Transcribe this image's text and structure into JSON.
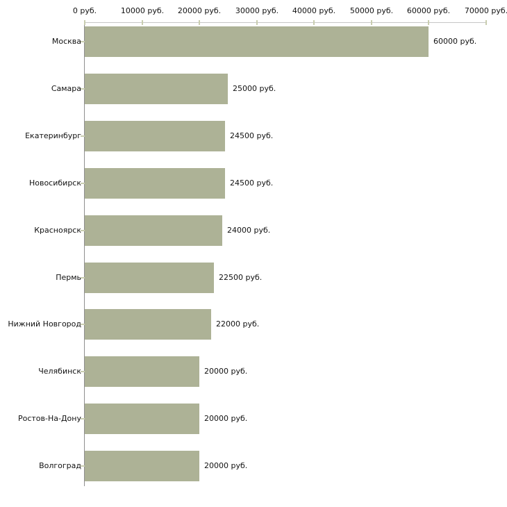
{
  "chart_data": {
    "type": "bar",
    "orientation": "horizontal",
    "title": "",
    "categories": [
      "Москва",
      "Самара",
      "Екатеринбург",
      "Новосибирск",
      "Красноярск",
      "Пермь",
      "Нижний Новгород",
      "Челябинск",
      "Ростов-На-Дону",
      "Волгоград"
    ],
    "values": [
      60000,
      25000,
      24500,
      24500,
      24000,
      22500,
      22000,
      20000,
      20000,
      20000
    ],
    "value_labels": [
      "60000 руб.",
      "25000 руб.",
      "24500 руб.",
      "24500 руб.",
      "24000 руб.",
      "22500 руб.",
      "22000 руб.",
      "20000 руб.",
      "20000 руб.",
      "20000 руб."
    ],
    "x_axis": {
      "position": "top",
      "min": 0,
      "max": 70000,
      "ticks": [
        0,
        10000,
        20000,
        30000,
        40000,
        50000,
        60000,
        70000
      ],
      "tick_labels": [
        "0 руб.",
        "10000 руб.",
        "20000 руб.",
        "30000 руб.",
        "40000 руб.",
        "50000 руб.",
        "60000 руб.",
        "70000 руб."
      ]
    },
    "grid": "off",
    "legend": "none",
    "colors": {
      "bar": "#adb296",
      "axis_vertical": "#8e8e8e",
      "axis_horizontal": "#c6c6c6",
      "tick": "#c9cdb0",
      "text": "#111111",
      "background": "#ffffff"
    }
  }
}
